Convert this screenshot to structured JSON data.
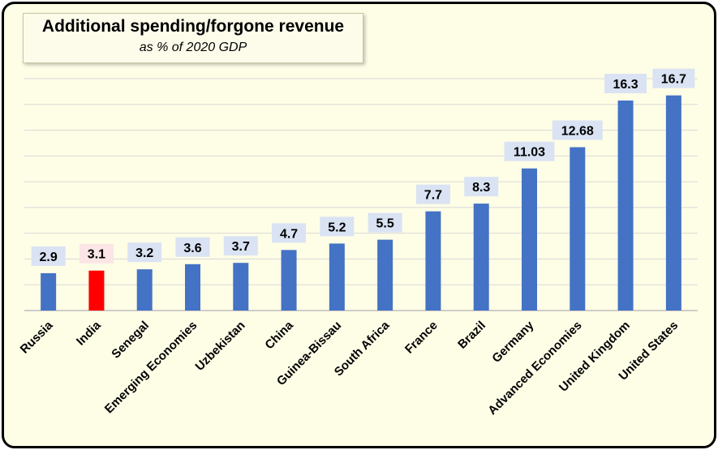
{
  "chart_data": {
    "type": "bar",
    "title": "Additional spending/forgone revenue",
    "subtitle": "as % of 2020 GDP",
    "xlabel": "",
    "ylabel": "",
    "ylim": [
      0,
      18
    ],
    "grid": true,
    "categories": [
      "Russia",
      "India",
      "Senegal",
      "Emerging Economies",
      "Uzbekistan",
      "China",
      "Guinea-Bissau",
      "South Africa",
      "France",
      "Brazil",
      "Germany",
      "Advanced Economies",
      "United Kingdom",
      "United States"
    ],
    "values": [
      2.9,
      3.1,
      3.2,
      3.6,
      3.7,
      4.7,
      5.2,
      5.5,
      7.7,
      8.3,
      11.03,
      12.68,
      16.3,
      16.7
    ],
    "value_labels": [
      "2.9",
      "3.1",
      "3.2",
      "3.6",
      "3.7",
      "4.7",
      "5.2",
      "5.5",
      "7.7",
      "8.3",
      "11.03",
      "12.68",
      "16.3",
      "16.7"
    ],
    "highlight_category": "India",
    "colors": {
      "bar": "#4472c4",
      "highlight": "#ff0000",
      "label_bg": "#dae3f3",
      "highlight_label_bg": "#fbe5e5",
      "frame_bg": "#fefde6",
      "gridline": "#d9d9d9"
    }
  }
}
